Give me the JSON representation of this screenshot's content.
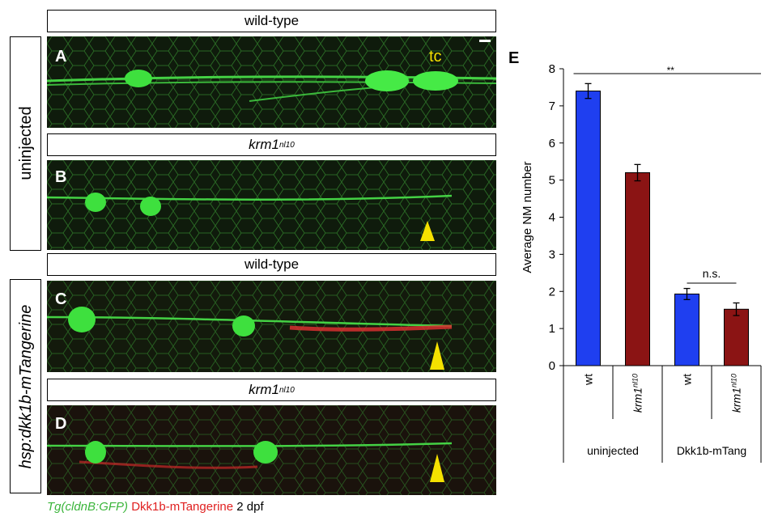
{
  "rows": {
    "uninjected_label": "uninjected",
    "injected_label": "hsp:dkk1b-mTangerine"
  },
  "panels": [
    {
      "letter": "A",
      "header": "wild-type",
      "annotation": "tc"
    },
    {
      "letter": "B",
      "header_main": "krm1",
      "header_sup": "nl10"
    },
    {
      "letter": "C",
      "header": "wild-type"
    },
    {
      "letter": "D",
      "header_main": "krm1",
      "header_sup": "nl10"
    }
  ],
  "caption": {
    "transgene": "Tg(cldnB:GFP)",
    "dkk": "Dkk1b-mTangerine",
    "stage": "2 dpf"
  },
  "colors": {
    "wt_bar": "#1f3ff0",
    "krm1_bar": "#8b1414",
    "gfp": "#3bd83b",
    "tangerine": "#e02020",
    "arrowhead": "#f5e100"
  },
  "chart_data": {
    "type": "bar",
    "panel_letter": "E",
    "ylabel": "Average NM number",
    "ylim": [
      0,
      8
    ],
    "yticks": [
      "0",
      "1",
      "2",
      "3",
      "4",
      "5",
      "6",
      "7",
      "8"
    ],
    "categories": [
      "wt",
      "krm1",
      "wt",
      "krm1"
    ],
    "category_superscripts": [
      "",
      "nl10",
      "",
      "nl10"
    ],
    "groups": [
      "uninjected",
      "Dkk1b-mTang"
    ],
    "values": [
      7.4,
      5.2,
      1.93,
      1.52
    ],
    "errors": [
      0.2,
      0.22,
      0.15,
      0.17
    ],
    "annotations": {
      "significance_all": "**",
      "significance_dkk": "n.s."
    }
  }
}
